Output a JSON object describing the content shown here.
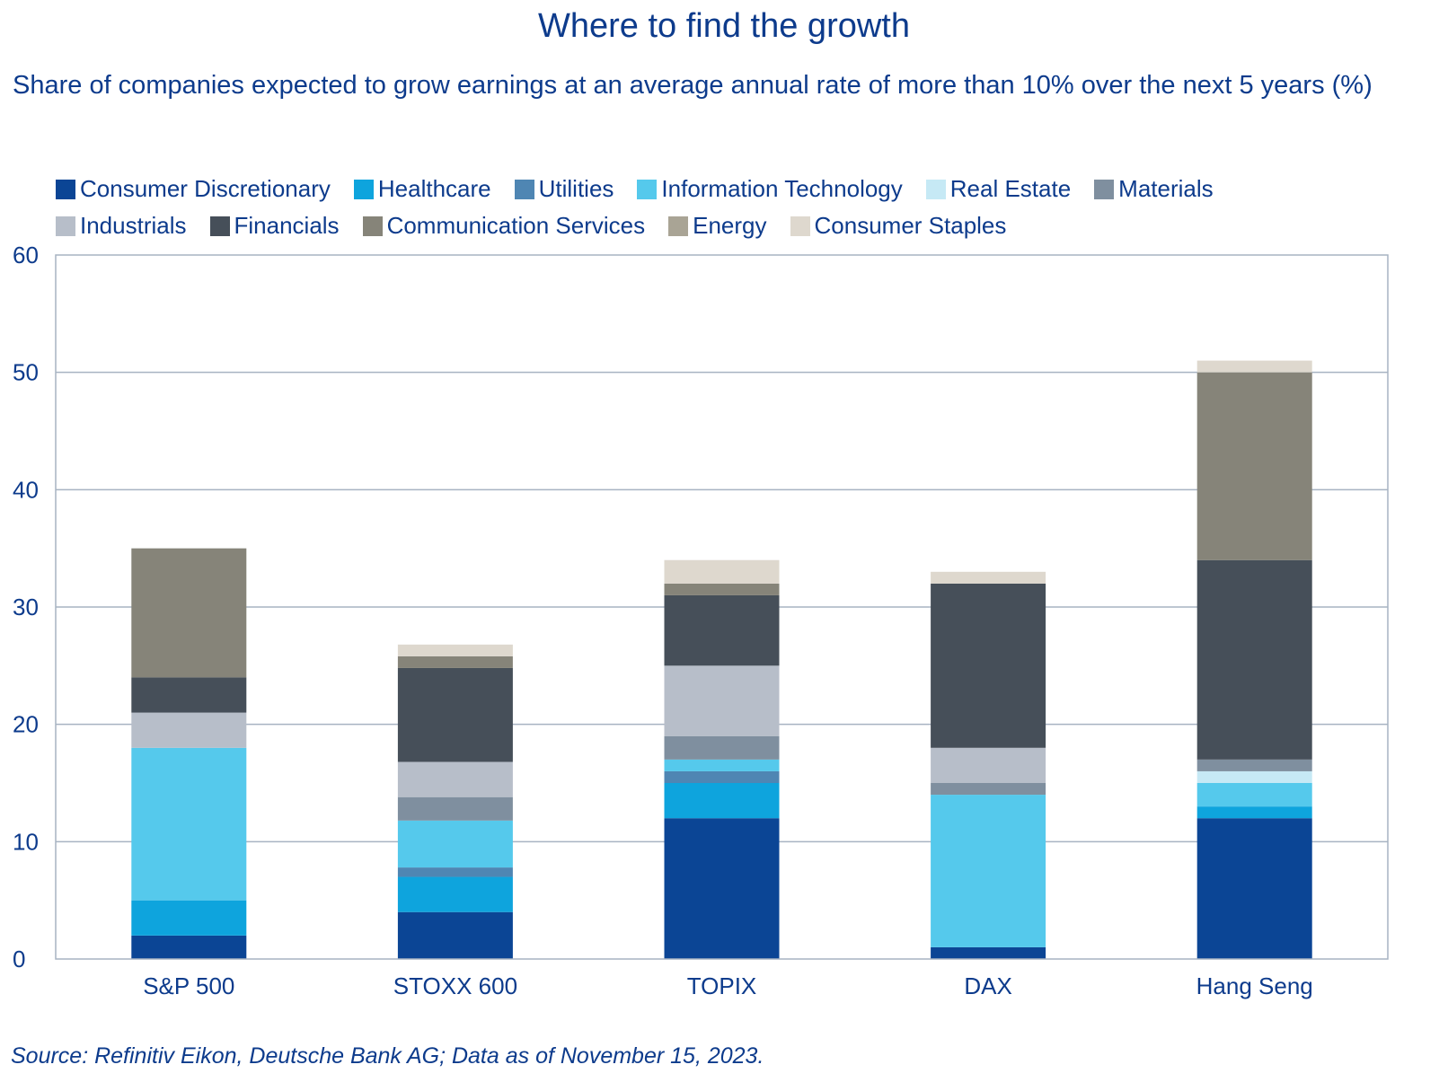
{
  "chart_data": {
    "type": "bar",
    "stacked": true,
    "title": "Where to find the growth",
    "subtitle": "Share of companies expected to grow earnings at an average annual rate of more than 10% over the next 5 years (%)",
    "categories": [
      "S&P 500",
      "STOXX 600",
      "TOPIX",
      "DAX",
      "Hang Seng"
    ],
    "ylim": [
      0,
      60
    ],
    "yticks": [
      0,
      10,
      20,
      30,
      40,
      50,
      60
    ],
    "xlabel": "",
    "ylabel": "",
    "grid": true,
    "legend_position": "top",
    "series": [
      {
        "name": "Consumer Discretionary",
        "color": "#0b4595",
        "values": [
          2,
          4,
          12,
          1,
          12
        ]
      },
      {
        "name": "Healthcare",
        "color": "#0ea4dd",
        "values": [
          3,
          3,
          3,
          0,
          1
        ]
      },
      {
        "name": "Utilities",
        "color": "#4f86b3",
        "values": [
          0,
          0.8,
          1,
          0,
          0
        ]
      },
      {
        "name": "Information Technology",
        "color": "#55c9ec",
        "values": [
          13,
          4,
          1,
          13,
          2
        ]
      },
      {
        "name": "Real Estate",
        "color": "#c6e9f5",
        "values": [
          0,
          0,
          0,
          0,
          1
        ]
      },
      {
        "name": "Materials",
        "color": "#7f8f9f",
        "values": [
          0,
          2,
          2,
          1,
          1
        ]
      },
      {
        "name": "Industrials",
        "color": "#b7bec9",
        "values": [
          3,
          3,
          6,
          3,
          0
        ]
      },
      {
        "name": "Financials",
        "color": "#464f59",
        "values": [
          3,
          8,
          6,
          14,
          17
        ]
      },
      {
        "name": "Communication Services",
        "color": "#868479",
        "values": [
          11,
          1,
          1,
          0,
          16
        ]
      },
      {
        "name": "Energy",
        "color": "#a9a495",
        "values": [
          0,
          0,
          0,
          0,
          0
        ]
      },
      {
        "name": "Consumer Staples",
        "color": "#ded8ce",
        "values": [
          0,
          1,
          2,
          1,
          1
        ]
      }
    ],
    "source": "Source: Refinitiv Eikon, Deutsche Bank AG; Data as of November 15, 2023."
  },
  "legend_rows": [
    [
      0,
      1,
      2,
      3,
      4,
      5
    ],
    [
      6,
      7,
      8,
      9,
      10
    ]
  ]
}
